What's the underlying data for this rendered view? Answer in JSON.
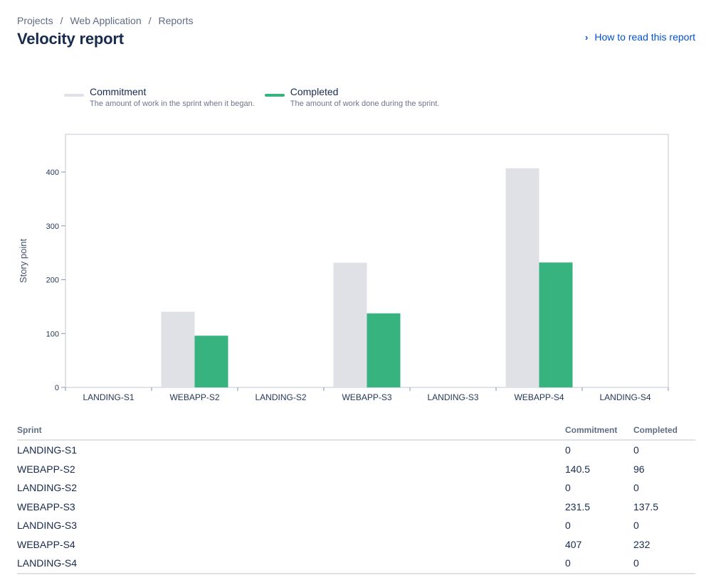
{
  "breadcrumbs": [
    "Projects",
    "Web Application",
    "Reports"
  ],
  "breadcrumb_separator": "/",
  "page_title": "Velocity report",
  "help_link": {
    "label": "How to read this report",
    "icon": "chevron-right-icon"
  },
  "legend": [
    {
      "name": "Commitment",
      "description": "The amount of work in the sprint when it began.",
      "color": "#dfe1e6"
    },
    {
      "name": "Completed",
      "description": "The amount of work done during the sprint.",
      "color": "#36b37e"
    }
  ],
  "chart_data": {
    "type": "bar",
    "categories": [
      "LANDING-S1",
      "WEBAPP-S2",
      "LANDING-S2",
      "WEBAPP-S3",
      "LANDING-S3",
      "WEBAPP-S4",
      "LANDING-S4"
    ],
    "series": [
      {
        "name": "Commitment",
        "values": [
          0,
          140.5,
          0,
          231.5,
          0,
          407,
          0
        ],
        "color": "#dfe1e6"
      },
      {
        "name": "Completed",
        "values": [
          0,
          96,
          0,
          137.5,
          0,
          232,
          0
        ],
        "color": "#36b37e"
      }
    ],
    "xlabel": "",
    "ylabel": "Story point",
    "ylim": [
      0,
      470
    ],
    "yticks": [
      0,
      100,
      200,
      300,
      400
    ],
    "grid": false,
    "legend_position": "top-left"
  },
  "table": {
    "headers": {
      "sprint": "Sprint",
      "commitment": "Commitment",
      "completed": "Completed"
    },
    "rows": [
      {
        "sprint": "LANDING-S1",
        "commitment": "0",
        "completed": "0"
      },
      {
        "sprint": "WEBAPP-S2",
        "commitment": "140.5",
        "completed": "96"
      },
      {
        "sprint": "LANDING-S2",
        "commitment": "0",
        "completed": "0"
      },
      {
        "sprint": "WEBAPP-S3",
        "commitment": "231.5",
        "completed": "137.5"
      },
      {
        "sprint": "LANDING-S3",
        "commitment": "0",
        "completed": "0"
      },
      {
        "sprint": "WEBAPP-S4",
        "commitment": "407",
        "completed": "232"
      },
      {
        "sprint": "LANDING-S4",
        "commitment": "0",
        "completed": "0"
      }
    ]
  }
}
